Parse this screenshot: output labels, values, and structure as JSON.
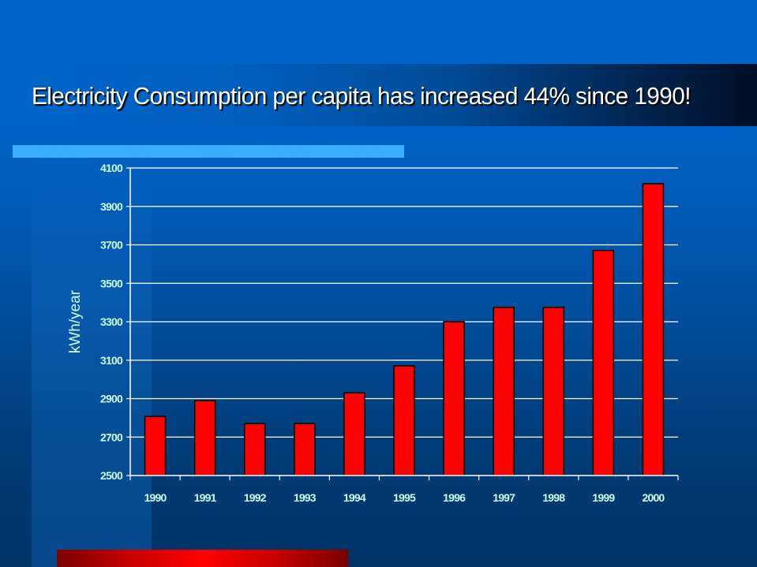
{
  "slide": {
    "title": "Electricity Consumption per capita has increased 44% since 1990!",
    "colors": {
      "background_top": "#0064c8",
      "background_bottom": "#003366",
      "accent_bar": "#33aaff",
      "bottom_bar": "#ff0000",
      "bar_fill": "#ff0000",
      "bar_stroke": "#000000",
      "gridline": "#ffffff",
      "tick_text": "#ccffff"
    }
  },
  "chart_data": {
    "type": "bar",
    "title": "Electricity Consumption per capita has increased 44% since 1990!",
    "xlabel": "",
    "ylabel": "kWh/year",
    "categories": [
      "1990",
      "1991",
      "1992",
      "1993",
      "1994",
      "1995",
      "1996",
      "1997",
      "1998",
      "1999",
      "2000"
    ],
    "values": [
      2807,
      2889,
      2770,
      2770,
      2930,
      3070,
      3300,
      3375,
      3375,
      3671,
      4018
    ],
    "ylim": [
      2500,
      4100
    ],
    "yticks": [
      2500,
      2700,
      2900,
      3100,
      3300,
      3500,
      3700,
      3900,
      4100
    ],
    "grid": true,
    "legend": "none"
  }
}
